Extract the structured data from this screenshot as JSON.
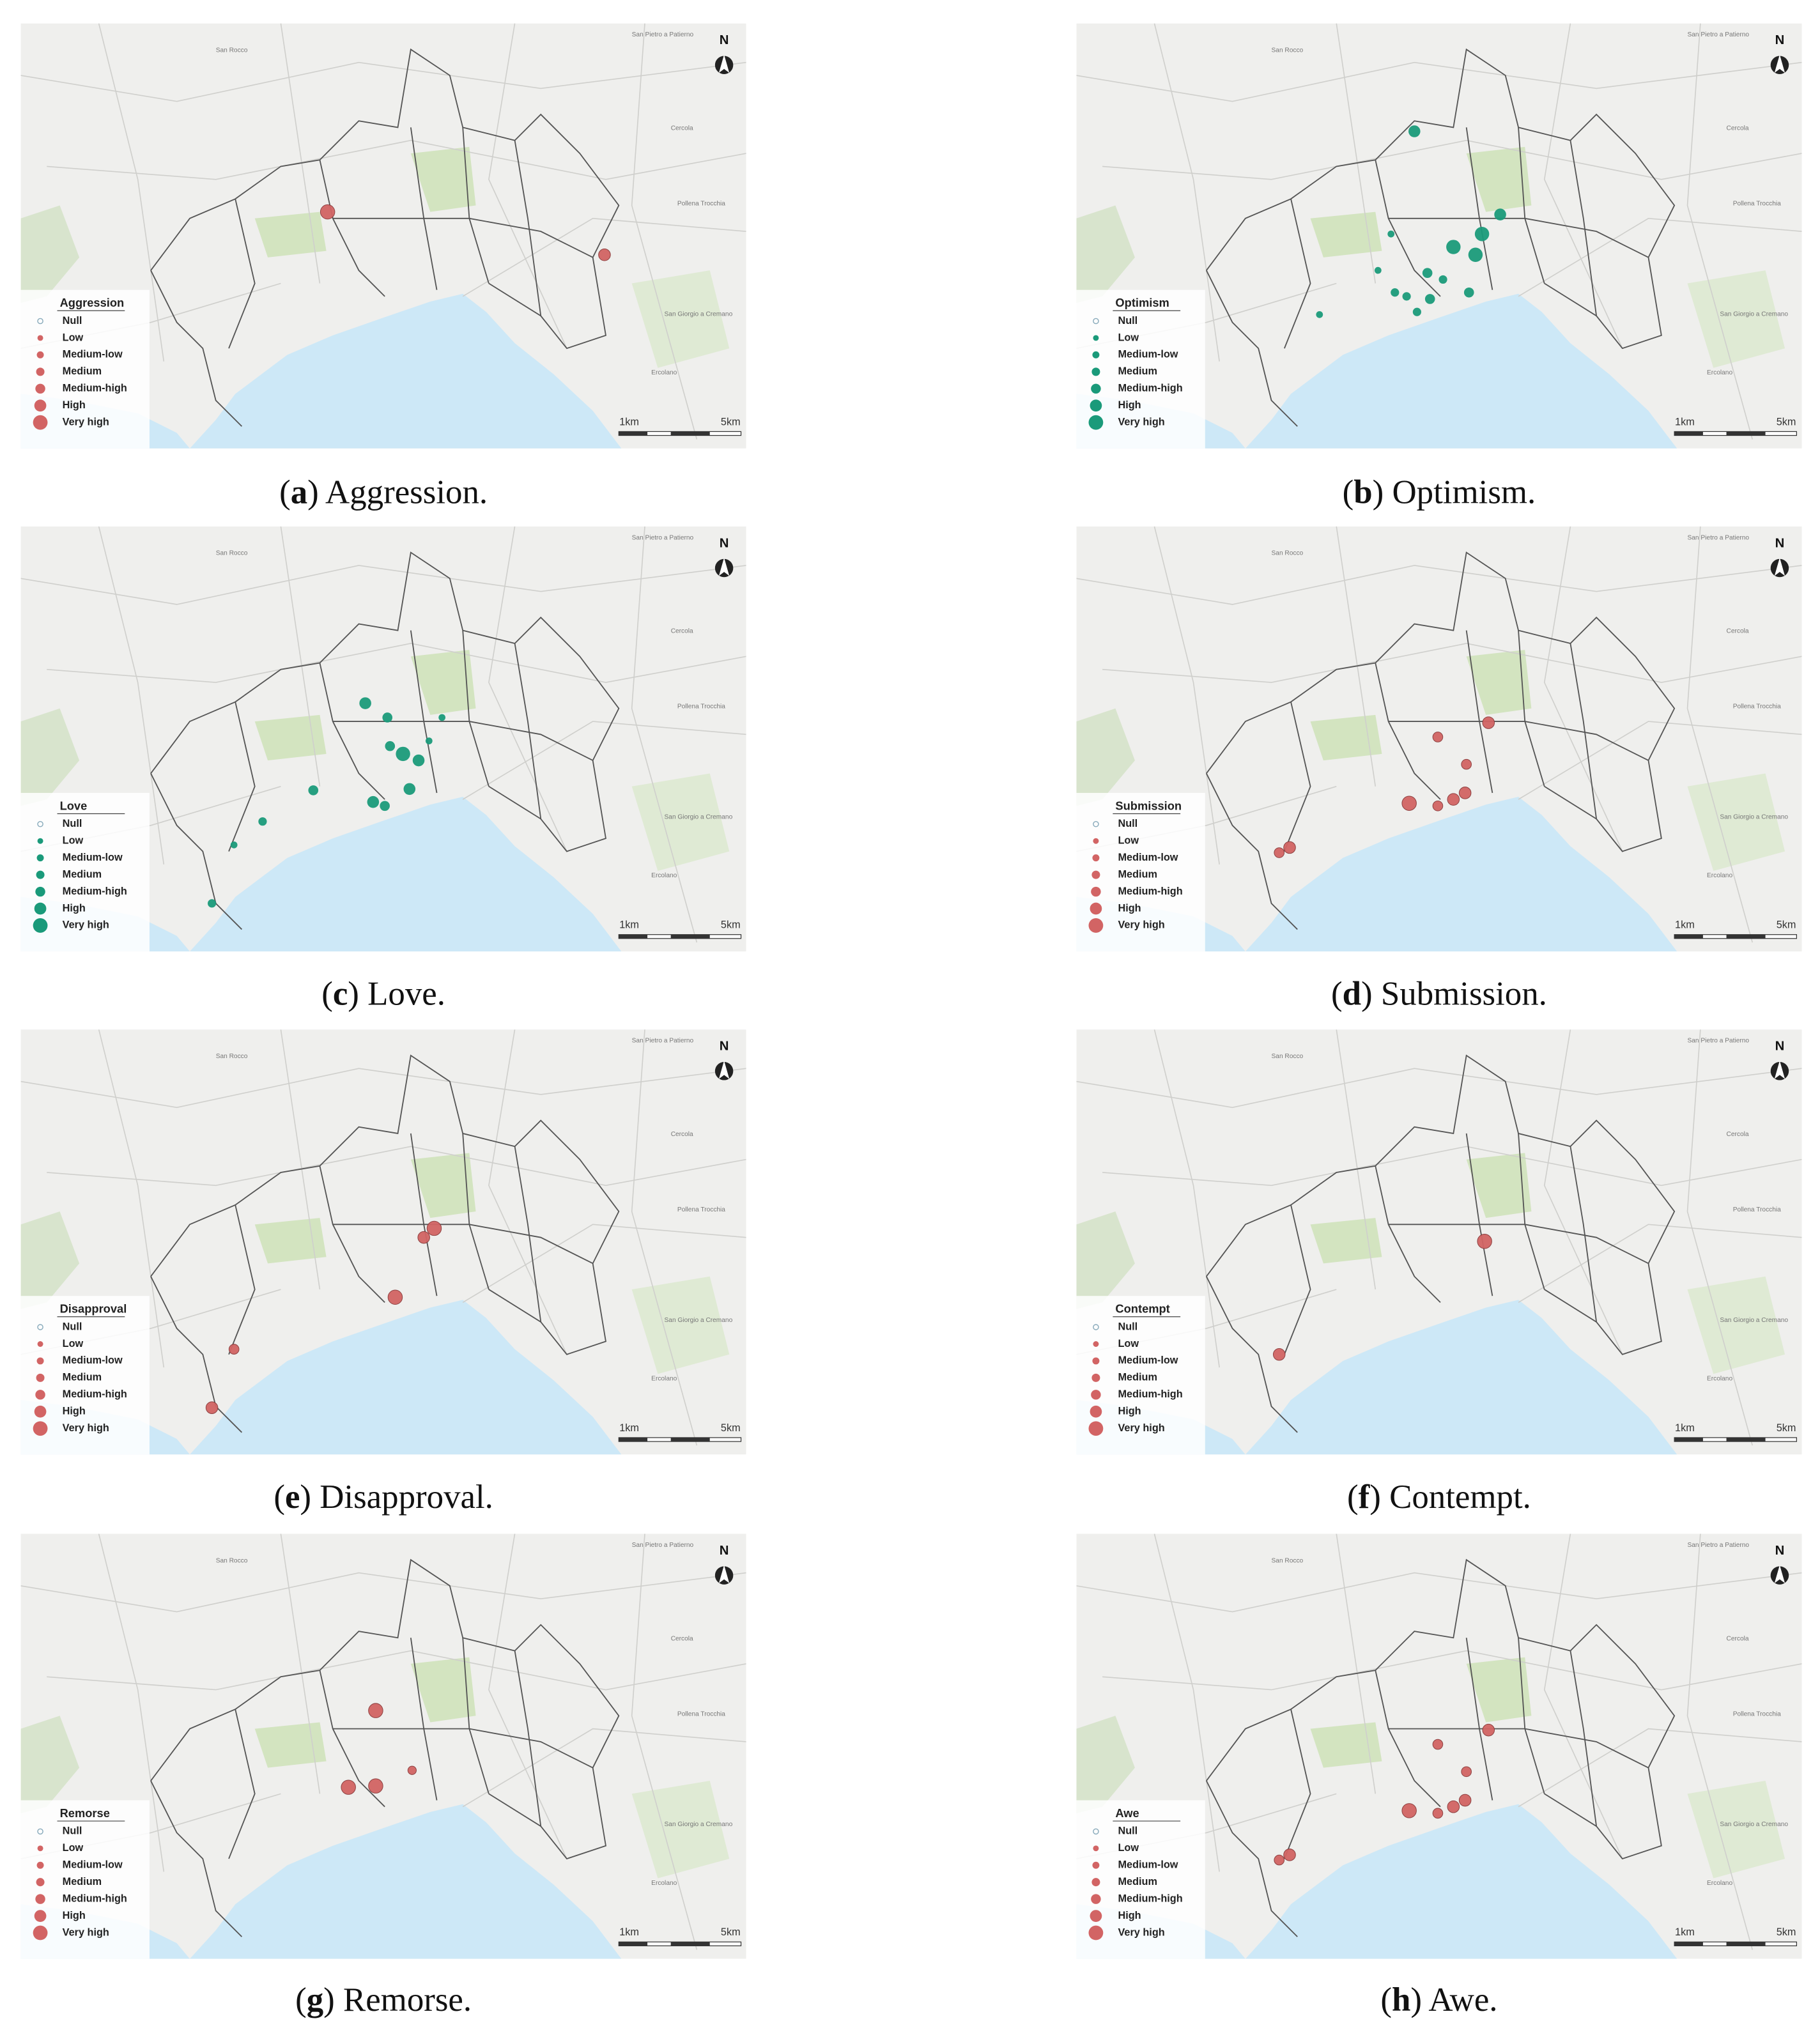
{
  "north_label": "N",
  "scale_labels": [
    "1km",
    "5km"
  ],
  "legend_levels": [
    "Null",
    "Low",
    "Medium-low",
    "Medium",
    "Medium-high",
    "High",
    "Very high"
  ],
  "map_labels": [
    "San Rocco",
    "Pollena Trocchia",
    "Cercola",
    "Ercolano",
    "San Giorgio a Cremano",
    "San Pietro a Patierno"
  ],
  "panels": [
    {
      "caption": [
        "(",
        "a",
        ") Aggression."
      ],
      "legend_title": "Aggression",
      "color": "#d26464"
    },
    {
      "caption": [
        "(",
        "b",
        ") Optimism."
      ],
      "legend_title": "Optimism",
      "color": "#1a9a7a"
    },
    {
      "caption": [
        "(",
        "c",
        ") Love."
      ],
      "legend_title": "Love",
      "color": "#1a9a7a"
    },
    {
      "caption": [
        "(",
        "d",
        ") Submission."
      ],
      "legend_title": "Submission",
      "color": "#d26464"
    },
    {
      "caption": [
        "(",
        "e",
        ") Disapproval."
      ],
      "legend_title": "Disapproval",
      "color": "#d26464"
    },
    {
      "caption": [
        "(",
        "f",
        ") Contempt."
      ],
      "legend_title": "Contempt",
      "color": "#d26464"
    },
    {
      "caption": [
        "(",
        "g",
        ") Remorse."
      ],
      "legend_title": "Remorse",
      "color": "#d26464"
    },
    {
      "caption": [
        "(",
        "h",
        ") Awe."
      ],
      "legend_title": "Awe",
      "color": "#d26464"
    }
  ]
}
